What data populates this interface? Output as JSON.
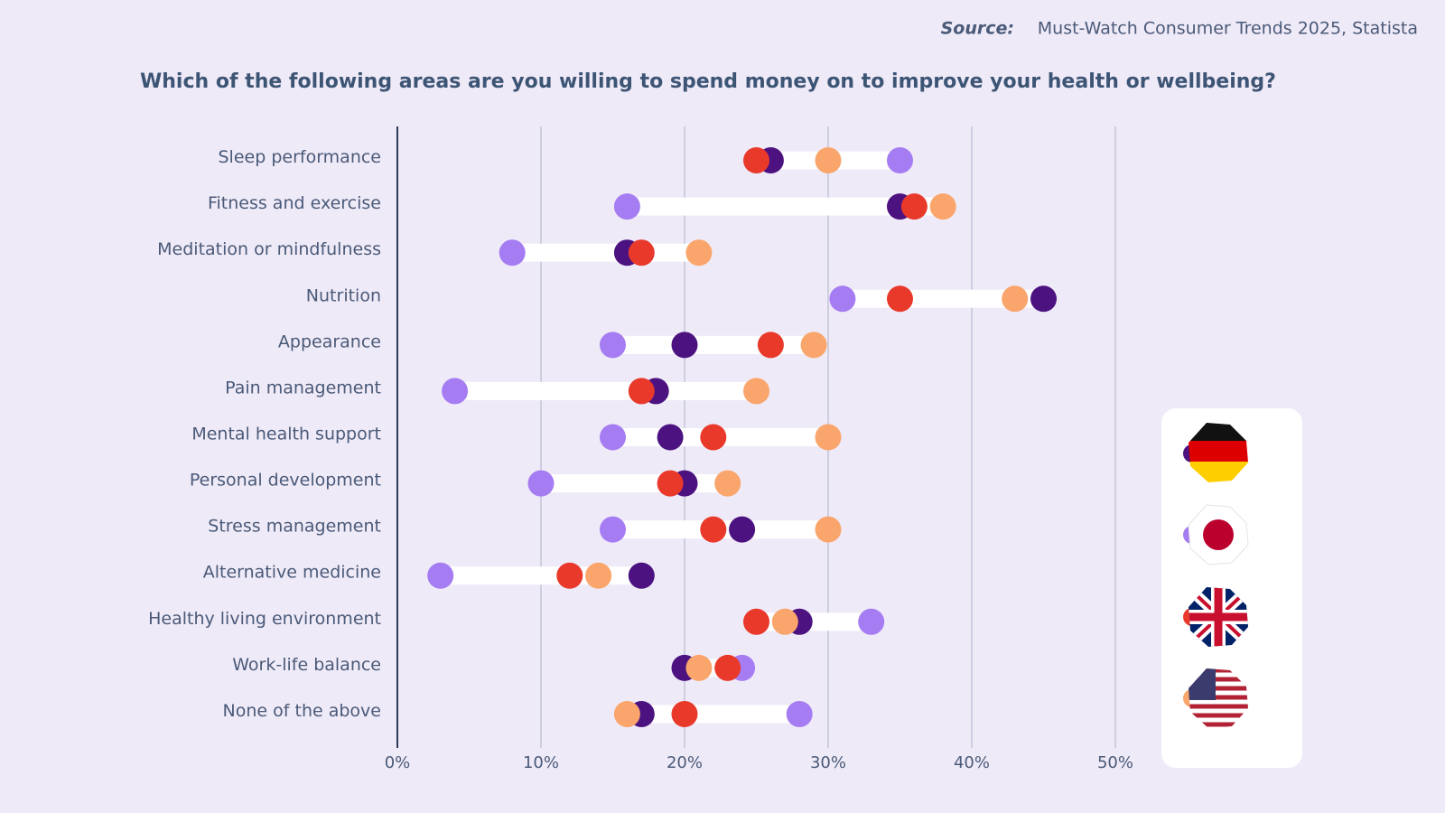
{
  "chart_data": {
    "type": "dot",
    "source_label": "Source:",
    "source": "Must-Watch Consumer Trends 2025, Statista",
    "title": "Which of the following areas are you willing to spend money on to improve your health or wellbeing?",
    "categories": [
      "Sleep performance",
      "Fitness and exercise",
      "Meditation or mindfulness",
      "Nutrition",
      "Appearance",
      "Pain management",
      "Mental health support",
      "Personal development",
      "Stress management",
      "Alternative medicine",
      "Healthy living environment",
      "Work-life balance",
      "None of the above"
    ],
    "series": [
      {
        "color": "#4b1280",
        "values": [
          26,
          35,
          16,
          45,
          20,
          18,
          19,
          20,
          24,
          17,
          28,
          20,
          17
        ]
      },
      {
        "color": "#a57cf2",
        "values": [
          35,
          16,
          8,
          31,
          15,
          4,
          15,
          10,
          15,
          3,
          33,
          24,
          28
        ]
      },
      {
        "color": "#e8392b",
        "values": [
          25,
          36,
          17,
          35,
          26,
          17,
          22,
          19,
          22,
          12,
          25,
          23,
          20
        ]
      },
      {
        "color": "#f9a56b",
        "values": [
          30,
          38,
          21,
          43,
          29,
          25,
          30,
          23,
          30,
          14,
          27,
          21,
          16
        ]
      }
    ],
    "xlim": [
      0,
      50
    ],
    "xticks": [
      {
        "value": 0,
        "label": "0%"
      },
      {
        "value": 10,
        "label": "10%"
      },
      {
        "value": 20,
        "label": "20%"
      },
      {
        "value": 30,
        "label": "30%"
      },
      {
        "value": 40,
        "label": "40%"
      },
      {
        "value": 50,
        "label": "50%"
      }
    ],
    "grid": true
  }
}
